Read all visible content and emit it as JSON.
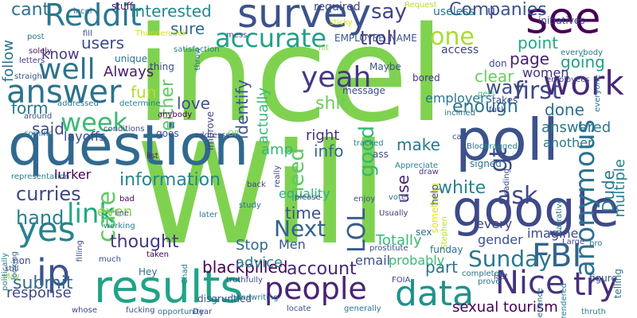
{
  "words": [
    {
      "t": "incel",
      "c": "#7fd24f"
    },
    {
      "t": "Will",
      "c": "#7fd24f"
    },
    {
      "t": "question",
      "c": "#30698f"
    },
    {
      "t": "poll",
      "c": "#3b528b"
    },
    {
      "t": "survey",
      "c": "#3b528b"
    },
    {
      "t": "google",
      "c": "#3e4989"
    },
    {
      "t": "see",
      "c": "#440154"
    },
    {
      "t": "results",
      "c": "#20a386"
    },
    {
      "t": "data",
      "c": "#21918c"
    },
    {
      "t": "ip",
      "c": "#3b528b"
    },
    {
      "t": "Nice",
      "c": "#46327e"
    },
    {
      "t": "try",
      "c": "#472d7b"
    },
    {
      "t": "answer",
      "c": "#2c728e"
    },
    {
      "t": "yes",
      "c": "#26828e"
    },
    {
      "t": "Reddit",
      "c": "#2a788e"
    },
    {
      "t": "well",
      "c": "#2c738e"
    },
    {
      "t": "work",
      "c": "#482777"
    },
    {
      "t": "FBI",
      "c": "#33638d"
    },
    {
      "t": "people",
      "c": "#482475"
    },
    {
      "t": "yeah",
      "c": "#443983"
    },
    {
      "t": "first",
      "c": "#404688"
    },
    {
      "t": "week",
      "c": "#3aba76"
    },
    {
      "t": "link",
      "c": "#22a785"
    },
    {
      "t": "accurate",
      "c": "#1fa188"
    },
    {
      "t": "one",
      "c": "#a8db34"
    },
    {
      "t": "say",
      "c": "#414487"
    },
    {
      "t": "Sunday",
      "c": "#2a788e"
    },
    {
      "t": "anonymous",
      "c": "#2c728e"
    },
    {
      "t": "care",
      "c": "#5ec962"
    },
    {
      "t": "gt",
      "c": "#3e4989"
    },
    {
      "t": "LOL",
      "c": "#365c8d"
    },
    {
      "t": "ask",
      "c": "#3e4989"
    },
    {
      "t": "hand",
      "c": "#26828e"
    },
    {
      "t": "Next",
      "c": "#33638d"
    },
    {
      "t": "account",
      "c": "#482878"
    },
    {
      "t": "blackpilled",
      "c": "#440154"
    },
    {
      "t": "good",
      "c": "#35b779"
    },
    {
      "t": "need",
      "c": "#5ec962"
    },
    {
      "t": "white",
      "c": "#26828e"
    },
    {
      "t": "curries",
      "c": "#3f4788"
    },
    {
      "t": "information",
      "c": "#25858e"
    },
    {
      "t": "sexual tourism",
      "c": "#440154"
    },
    {
      "t": "submit",
      "c": "#31688e"
    },
    {
      "t": "way",
      "c": "#3e4a89"
    },
    {
      "t": "point",
      "c": "#22a884"
    },
    {
      "t": "going",
      "c": "#1fa187"
    },
    {
      "t": "page",
      "c": "#481f70"
    },
    {
      "t": "women",
      "c": "#46337e"
    },
    {
      "t": "clear",
      "c": "#6ccd5a"
    },
    {
      "t": "enough",
      "c": "#2a788e"
    },
    {
      "t": "done",
      "c": "#2e6f8e"
    },
    {
      "t": "answered",
      "c": "#2a788e"
    },
    {
      "t": "another",
      "c": "#2a788e"
    },
    {
      "t": "troll",
      "c": "#46337e"
    },
    {
      "t": "interested",
      "c": "#23898e"
    },
    {
      "t": "sure",
      "c": "#2f6c8e"
    },
    {
      "t": "users",
      "c": "#3e4989"
    },
    {
      "t": "know",
      "c": "#443a83"
    },
    {
      "t": "Always",
      "c": "#481b6d"
    },
    {
      "t": "either",
      "c": "#5ec962"
    },
    {
      "t": "fun",
      "c": "#b5de2b"
    },
    {
      "t": "love",
      "c": "#3b528b"
    },
    {
      "t": "identify",
      "c": "#39568c"
    },
    {
      "t": "actually",
      "c": "#3aba76"
    },
    {
      "t": "shit",
      "c": "#6ccd5a"
    },
    {
      "t": "amp",
      "c": "#35b779"
    },
    {
      "t": "time",
      "c": "#3b528b"
    },
    {
      "t": "equality",
      "c": "#2db27d"
    },
    {
      "t": "thought",
      "c": "#443983"
    },
    {
      "t": "even",
      "c": "#8fd744"
    },
    {
      "t": "layoffs",
      "c": "#3b528b"
    },
    {
      "t": "said",
      "c": "#3e4989"
    },
    {
      "t": "form",
      "c": "#2a788e"
    },
    {
      "t": "follow",
      "c": "#2c728e"
    },
    {
      "t": "response",
      "c": "#3e4989"
    },
    {
      "t": "advice",
      "c": "#26828e"
    },
    {
      "t": "Stop",
      "c": "#31688e"
    },
    {
      "t": "Men",
      "c": "#3a548c"
    },
    {
      "t": "Totally",
      "c": "#3aba76"
    },
    {
      "t": "email",
      "c": "#3b528b"
    },
    {
      "t": "part",
      "c": "#2c728e"
    },
    {
      "t": "use",
      "c": "#482475"
    },
    {
      "t": "make",
      "c": "#2a788e"
    },
    {
      "t": "info",
      "c": "#31688e"
    },
    {
      "t": "right",
      "c": "#46337e"
    },
    {
      "t": "every",
      "c": "#414487"
    },
    {
      "t": "gender",
      "c": "#3b528b"
    },
    {
      "t": "imagine",
      "c": "#3e4989"
    },
    {
      "t": "Dude",
      "c": "#2a788e"
    },
    {
      "t": "multiple",
      "c": "#26828e"
    },
    {
      "t": "telling",
      "c": "#2c728e"
    },
    {
      "t": "Companies",
      "c": "#3b528b"
    },
    {
      "t": "u",
      "c": "#414487"
    },
    {
      "t": "probably",
      "c": "#3aba76"
    },
    {
      "t": "lurker",
      "c": "#440154"
    },
    {
      "t": "cant",
      "c": "#2c728e"
    },
    {
      "t": "incel",
      "c": "#31688e"
    },
    {
      "t": "stuff",
      "c": "#471365"
    },
    {
      "t": "Request",
      "c": "#b5de2b"
    },
    {
      "t": "initiatives",
      "c": "#3e4989"
    },
    {
      "t": "useless",
      "c": "#2c728e"
    },
    {
      "t": "sticky",
      "c": "#dde318"
    },
    {
      "t": "mess",
      "c": "#3e4989"
    },
    {
      "t": "EMPLOYEE_NAME",
      "c": "#39568c"
    },
    {
      "t": "post",
      "c": "#2a788e"
    },
    {
      "t": "Thundercock",
      "c": "#d2e21b"
    },
    {
      "t": "fill",
      "c": "#3e4989"
    },
    {
      "t": "solely",
      "c": "#481467"
    },
    {
      "t": "letters",
      "c": "#443983"
    },
    {
      "t": "satisfaction",
      "c": "#26828e"
    },
    {
      "t": "hit",
      "c": "#8fd744"
    },
    {
      "t": "straight",
      "c": "#3b528b"
    },
    {
      "t": "unique",
      "c": "#2c728e"
    },
    {
      "t": "thing",
      "c": "#3e4989"
    },
    {
      "t": "Maybe",
      "c": "#3b528b"
    },
    {
      "t": "access",
      "c": "#414487"
    },
    {
      "t": "don",
      "c": "#3e4989"
    },
    {
      "t": "gets",
      "c": "#35b779"
    },
    {
      "t": "bored",
      "c": "#46337e"
    },
    {
      "t": "message",
      "c": "#3e4989"
    },
    {
      "t": "throw",
      "c": "#2a788e"
    },
    {
      "t": "addressed",
      "c": "#2a788e"
    },
    {
      "t": "determine",
      "c": "#26828e"
    },
    {
      "t": "around",
      "c": "#3b528b"
    },
    {
      "t": "anybody",
      "c": "#440154"
    },
    {
      "t": "conditions",
      "c": "#3e4989"
    },
    {
      "t": "improve",
      "c": "#414487"
    },
    {
      "t": "goes",
      "c": "#3b528b"
    },
    {
      "t": "addresses",
      "c": "#3e4989"
    },
    {
      "t": "OP",
      "c": "#6ccd5a"
    },
    {
      "t": "coming",
      "c": "#26828e"
    },
    {
      "t": "employers",
      "c": "#2a788e"
    },
    {
      "t": "inclined",
      "c": "#2c728e"
    },
    {
      "t": "fuck",
      "c": "#46337e"
    },
    {
      "t": "takes",
      "c": "#3e4989"
    },
    {
      "t": "Block",
      "c": "#2c728e"
    },
    {
      "t": "dragged",
      "c": "#26828e"
    },
    {
      "t": "call",
      "c": "#3e4989"
    },
    {
      "t": "ass",
      "c": "#3b528b"
    },
    {
      "t": "tracked",
      "c": "#2a788e"
    },
    {
      "t": "Appreciate",
      "c": "#26828e"
    },
    {
      "t": "draw",
      "c": "#443983"
    },
    {
      "t": "signed",
      "c": "#2c728e"
    },
    {
      "t": "list",
      "c": "#481467"
    },
    {
      "t": "back",
      "c": "#414487"
    },
    {
      "t": "please",
      "c": "#3e4989"
    },
    {
      "t": "enjoy",
      "c": "#3b528b"
    },
    {
      "t": "vote",
      "c": "#2c728e"
    },
    {
      "t": "something",
      "c": "#dde318"
    },
    {
      "t": "leading",
      "c": "#3e4989"
    },
    {
      "t": "narrative",
      "c": "#2a788e"
    },
    {
      "t": "representation",
      "c": "#26828e"
    },
    {
      "t": "bad",
      "c": "#440154"
    },
    {
      "t": "really",
      "c": "#3e4989"
    },
    {
      "t": "study",
      "c": "#2c728e"
    },
    {
      "t": "later",
      "c": "#2a788e"
    },
    {
      "t": "line",
      "c": "#3b528b"
    },
    {
      "t": "working",
      "c": "#26828e"
    },
    {
      "t": "Usually",
      "c": "#443983"
    },
    {
      "t": "sex",
      "c": "#2c728e"
    },
    {
      "t": "help",
      "c": "#3e4989"
    },
    {
      "t": "Stephen",
      "c": "#b5de2b"
    },
    {
      "t": "prostitute",
      "c": "#3b528b"
    },
    {
      "t": "funday",
      "c": "#2c728e"
    },
    {
      "t": "completed",
      "c": "#2a788e"
    },
    {
      "t": "much",
      "c": "#3e4989"
    },
    {
      "t": "taken",
      "c": "#440154"
    },
    {
      "t": "Hey",
      "c": "#2c728e"
    },
    {
      "t": "Chad",
      "c": "#26828e"
    },
    {
      "t": "Large",
      "c": "#3e4989"
    },
    {
      "t": "bro",
      "c": "#2c728e"
    },
    {
      "t": "figure",
      "c": "#3b528b"
    },
    {
      "t": "non",
      "c": "#3e4989"
    },
    {
      "t": "still",
      "c": "#443983"
    },
    {
      "t": "May",
      "c": "#8fd744"
    },
    {
      "t": "filling",
      "c": "#3e4989"
    },
    {
      "t": "looking",
      "c": "#2c728e"
    },
    {
      "t": "politically",
      "c": "#26828e"
    },
    {
      "t": "truthfully",
      "c": "#3e4989"
    },
    {
      "t": "disgruntled",
      "c": "#3b528b"
    },
    {
      "t": "handwriting",
      "c": "#2c728e"
    },
    {
      "t": "FOIA",
      "c": "#3e4989"
    },
    {
      "t": "prove",
      "c": "#2a788e"
    },
    {
      "t": "last",
      "c": "#443983"
    },
    {
      "t": "rendered",
      "c": "#26828e"
    },
    {
      "t": "experience",
      "c": "#2c728e"
    },
    {
      "t": "whose",
      "c": "#3e4989"
    },
    {
      "t": "fucking",
      "c": "#3b528b"
    },
    {
      "t": "opportunity",
      "c": "#2c728e"
    },
    {
      "t": "Dear",
      "c": "#3e4989"
    },
    {
      "t": "locate",
      "c": "#3b528b"
    },
    {
      "t": "generally",
      "c": "#2a788e"
    },
    {
      "t": "thruth",
      "c": "#26828e"
    },
    {
      "t": "everybody",
      "c": "#2c728e"
    },
    {
      "t": "employees",
      "c": "#3e4989"
    },
    {
      "t": "everyone",
      "c": "#2a788e"
    },
    {
      "t": "required",
      "c": "#3e4989"
    },
    {
      "t": "gotten",
      "c": "#26828e"
    },
    {
      "t": "$",
      "c": "#dde318"
    }
  ]
}
